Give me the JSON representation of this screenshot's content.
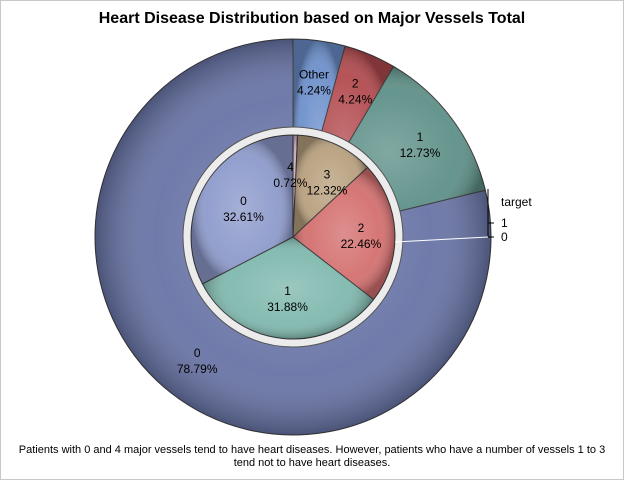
{
  "chart_data": {
    "type": "pie",
    "title": "Heart Disease Distribution based on Major Vessels Total",
    "footnote": "Patients with 0 and 4 major vessels tend to have heart diseases. However, patients who have a number of vessels 1 to 3 tend not to have heart diseases.",
    "inner_ring": {
      "slices": [
        {
          "label": "4",
          "value": 0.72,
          "value_text": "0.72%",
          "color": "#c9a8c0"
        },
        {
          "label": "3",
          "value": 12.32,
          "value_text": "12.32%",
          "color": "#b8a07e"
        },
        {
          "label": "2",
          "value": 22.46,
          "value_text": "22.46%",
          "color": "#d46f6f"
        },
        {
          "label": "1",
          "value": 31.88,
          "value_text": "31.88%",
          "color": "#7fb8ae"
        },
        {
          "label": "0",
          "value": 32.61,
          "value_text": "32.61%",
          "color": "#8d9acb"
        }
      ]
    },
    "outer_ring": {
      "slices": [
        {
          "label": "Other",
          "value": 4.24,
          "value_text": "4.24%",
          "color": "#6c8fcb"
        },
        {
          "label": "2",
          "value": 4.24,
          "value_text": "4.24%",
          "color": "#b24a4e"
        },
        {
          "label": "1",
          "value": 12.73,
          "value_text": "12.73%",
          "color": "#5d9088"
        },
        {
          "label": "0",
          "value": 78.79,
          "value_text": "78.79%",
          "color": "#6874a6"
        }
      ]
    },
    "legend": {
      "title": "target",
      "entries": [
        "1",
        "0"
      ],
      "placement": "right"
    }
  }
}
